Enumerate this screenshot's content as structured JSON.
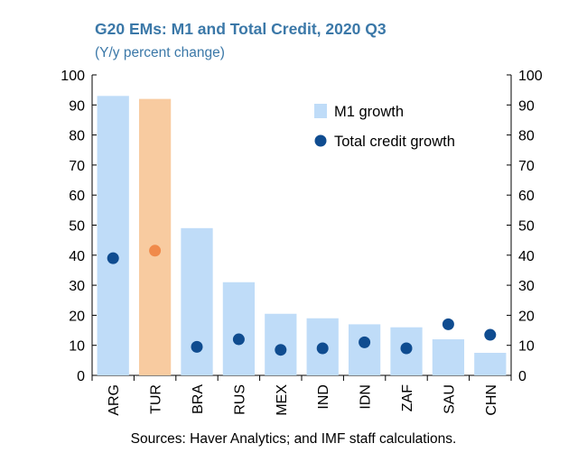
{
  "chart_data": {
    "type": "bar",
    "title": "G20 EMs: M1 and Total Credit, 2020 Q3",
    "subtitle": "(Y/y percent change)",
    "source": "Sources: Haver Analytics; and IMF staff calculations.",
    "categories": [
      "ARG",
      "TUR",
      "BRA",
      "RUS",
      "MEX",
      "IND",
      "IDN",
      "ZAF",
      "SAU",
      "CHN"
    ],
    "ylim": [
      0,
      100
    ],
    "yticks": [
      0,
      10,
      20,
      30,
      40,
      50,
      60,
      70,
      80,
      90,
      100
    ],
    "legend_position": "top-right",
    "series": [
      {
        "name": "M1 growth",
        "kind": "bar",
        "values": [
          93,
          92,
          49,
          31,
          20.5,
          19,
          17,
          16,
          12,
          7.5
        ],
        "color": "#bfdcf8",
        "highlight_color": "#f8cba0",
        "highlight_index": 1
      },
      {
        "name": "Total credit growth",
        "kind": "point",
        "values": [
          39,
          41.5,
          9.5,
          12,
          8.5,
          9,
          11,
          9,
          17,
          13.5
        ],
        "color": "#0f4c90",
        "highlight_color": "#f08a4b",
        "highlight_index": 1
      }
    ],
    "grid": false
  }
}
